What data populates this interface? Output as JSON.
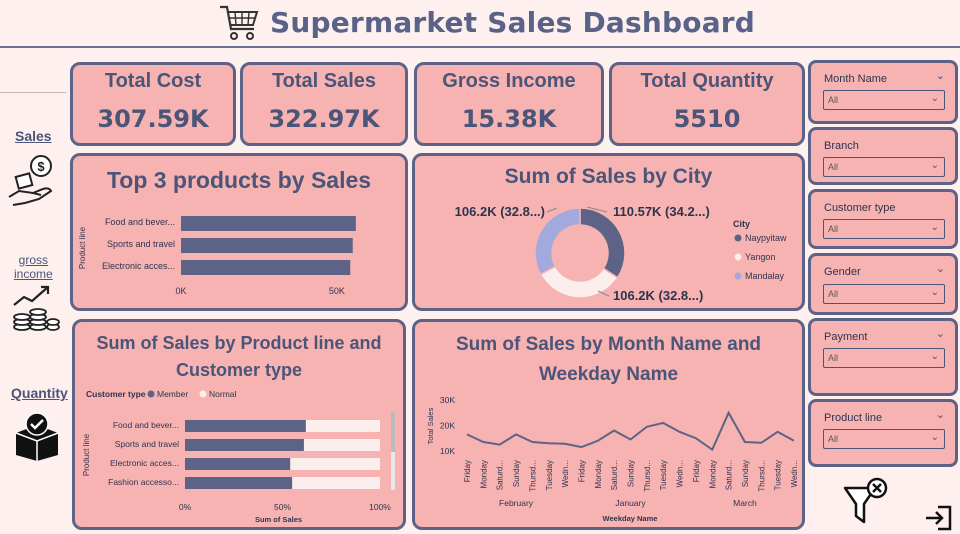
{
  "title": "Supermarket Sales Dashboard",
  "nav": {
    "sales": "Sales",
    "gross": "gross\nincome",
    "quantity": "Quantity"
  },
  "kpis": [
    {
      "label": "Total Cost",
      "value": "307.59K"
    },
    {
      "label": "Total Sales",
      "value": "322.97K"
    },
    {
      "label": "Gross Income",
      "value": "15.38K"
    },
    {
      "label": "Total Quantity",
      "value": "5510"
    }
  ],
  "slicers": [
    {
      "label": "Month Name",
      "value": "All"
    },
    {
      "label": "Branch",
      "value": "All"
    },
    {
      "label": "Customer type",
      "value": "All"
    },
    {
      "label": "Gender",
      "value": "All"
    },
    {
      "label": "Payment",
      "value": "All"
    },
    {
      "label": "Product line",
      "value": "All"
    }
  ],
  "colors": {
    "bg": "#fdf0ef",
    "card": "#f7b3b1",
    "dark": "#5d6387",
    "light": "#fbeeed",
    "lilac": "#a3a9dc"
  },
  "chart_data": [
    {
      "type": "bar",
      "title": "Top 3 products by Sales",
      "ylabel": "Product line",
      "categories": [
        "Food and bever...",
        "Sports and travel",
        "Electronic acces..."
      ],
      "values": [
        56100,
        55100,
        54300
      ],
      "ticks": [
        "0K",
        "50K"
      ],
      "xlim": [
        0,
        60000
      ]
    },
    {
      "type": "pie",
      "title": "Sum of Sales by City",
      "legend_title": "City",
      "categories": [
        "Naypyitaw",
        "Yangon",
        "Mandalay"
      ],
      "values": [
        110570,
        106200,
        106200
      ],
      "labels": [
        "110.57K (34.2...)",
        "106.2K (32.8...)",
        "106.2K (32.8...)"
      ],
      "colors": [
        "#5d6387",
        "#fbeeed",
        "#a3a9dc"
      ]
    },
    {
      "type": "bar",
      "title": "Sum of Sales by Product line and Customer type",
      "legend_title": "Customer type",
      "legend": [
        "Member",
        "Normal"
      ],
      "xlabel": "Sum of Sales",
      "ylabel": "Product line",
      "categories": [
        "Food and bever...",
        "Sports and travel",
        "Electronic acces...",
        "Fashion accesso..."
      ],
      "series": [
        {
          "name": "Member",
          "values": [
            62,
            61,
            54,
            55
          ]
        },
        {
          "name": "Normal",
          "values": [
            38,
            39,
            46,
            45
          ]
        }
      ],
      "ticks": [
        "0%",
        "50%",
        "100%"
      ],
      "xlim": [
        0,
        100
      ]
    },
    {
      "type": "line",
      "title": "Sum of Sales by Month Name and Weekday Name",
      "xlabel": "Weekday Name",
      "ylabel": "Total Sales",
      "y_ticks": [
        "30K",
        "20K",
        "10K"
      ],
      "ylim": [
        8000,
        32000
      ],
      "x": [
        "Friday",
        "Monday",
        "Saturd...",
        "Sunday",
        "Thursd...",
        "Tuesday",
        "Wedn...",
        "Friday",
        "Monday",
        "Saturd...",
        "Sunday",
        "Thursd...",
        "Tuesday",
        "Wedn...",
        "Friday",
        "Monday",
        "Saturd...",
        "Sunday",
        "Thursd...",
        "Tuesday",
        "Wedn..."
      ],
      "groups": [
        {
          "name": "February",
          "start": 0,
          "end": 6
        },
        {
          "name": "January",
          "start": 7,
          "end": 13
        },
        {
          "name": "March",
          "start": 14,
          "end": 20
        }
      ],
      "values": [
        16500,
        13500,
        12500,
        16500,
        13500,
        13000,
        12800,
        11500,
        14000,
        18000,
        14500,
        19500,
        21000,
        17500,
        15000,
        10500,
        25000,
        13500,
        13200,
        17500,
        14000
      ]
    }
  ]
}
